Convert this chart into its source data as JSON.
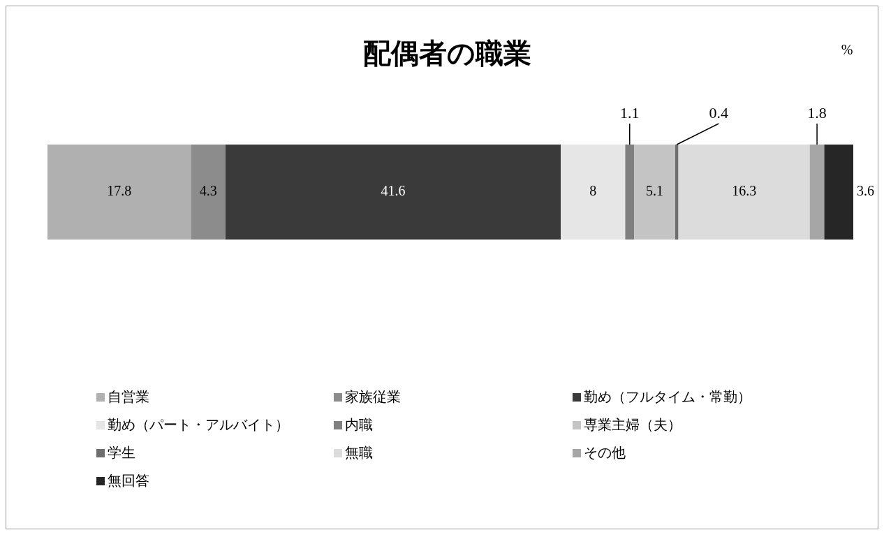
{
  "chart_data": {
    "type": "bar",
    "orientation": "horizontal",
    "stacked": true,
    "title": "配偶者の職業",
    "annotations": [
      "%"
    ],
    "categories": [
      null
    ],
    "xlim": [
      0,
      100
    ],
    "data_labels": true,
    "legend": "bottom",
    "series": [
      {
        "name": "自営業",
        "color": "#b0b0b0",
        "values": [
          17.8
        ]
      },
      {
        "name": "家族従業",
        "color": "#8c8c8c",
        "values": [
          4.3
        ]
      },
      {
        "name": "勤め（フルタイム・常勤）",
        "color": "#3a3a3a",
        "values": [
          41.6
        ]
      },
      {
        "name": "勤め（パート・アルバイト）",
        "color": "#e6e6e6",
        "values": [
          8
        ]
      },
      {
        "name": "内職",
        "color": "#7f7f7f",
        "values": [
          1.1
        ]
      },
      {
        "name": "専業主婦（夫）",
        "color": "#c4c4c4",
        "values": [
          5.1
        ]
      },
      {
        "name": "学生",
        "color": "#6e6e6e",
        "values": [
          0.4
        ]
      },
      {
        "name": "無職",
        "color": "#dcdcdc",
        "values": [
          16.3
        ]
      },
      {
        "name": "その他",
        "color": "#a6a6a6",
        "values": [
          1.8
        ]
      },
      {
        "name": "無回答",
        "color": "#262626",
        "values": [
          3.6
        ]
      }
    ]
  }
}
